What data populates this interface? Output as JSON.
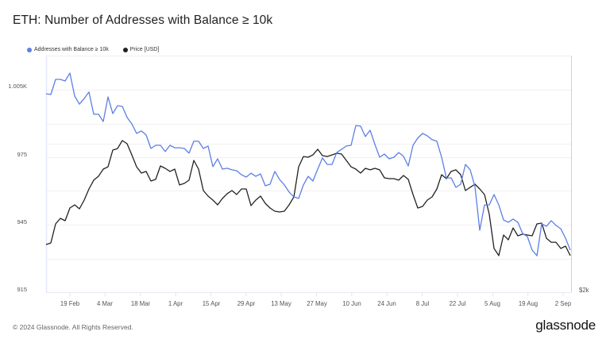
{
  "header": {
    "title": "ETH: Number of Addresses with Balance ≥ 10k"
  },
  "legend": {
    "items": [
      {
        "label": "Addresses with Balance ≥ 10k",
        "color": "#5b7fe6"
      },
      {
        "label": "Price [USD]",
        "color": "#222222"
      }
    ]
  },
  "axes": {
    "left_ticks": [
      "1.005K",
      "975",
      "945",
      "915"
    ],
    "right_ticks": [
      "$2k"
    ],
    "x_ticks": [
      "19 Feb",
      "4 Mar",
      "18 Mar",
      "1 Apr",
      "15 Apr",
      "29 Apr",
      "13 May",
      "27 May",
      "10 Jun",
      "24 Jun",
      "8 Jul",
      "22 Jul",
      "5 Aug",
      "19 Aug",
      "2 Sep"
    ]
  },
  "footer": {
    "copyright": "© 2024 Glassnode. All Rights Reserved.",
    "brand": "glassnode"
  },
  "chart_data": {
    "type": "line",
    "title": "ETH: Number of Addresses with Balance ≥ 10k",
    "xlabel": "",
    "ylabel": "",
    "x_start_date": "2024-02-10",
    "x_end_date": "2024-09-05",
    "x_step_days": 1.9,
    "x_ticks": [
      "19 Feb",
      "4 Mar",
      "18 Mar",
      "1 Apr",
      "15 Apr",
      "29 Apr",
      "13 May",
      "27 May",
      "10 Jun",
      "24 Jun",
      "8 Jul",
      "22 Jul",
      "5 Aug",
      "19 Aug",
      "2 Sep"
    ],
    "ylim_left": [
      915,
      1020
    ],
    "yticks_left": [
      915,
      945,
      975,
      1005
    ],
    "right_axis": {
      "scale": "log",
      "bottom_label": "$2k",
      "bottom_value": 2000
    },
    "grid": true,
    "legend_position": "top-left",
    "series": [
      {
        "name": "Addresses with Balance ≥ 10k",
        "axis": "left",
        "color": "#5b7fe6",
        "values": [
          1003.2,
          1002.9,
          1009.6,
          1009.6,
          1008.9,
          1012.4,
          1002.2,
          998.6,
          1001.1,
          1004.0,
          994.1,
          994.1,
          990.9,
          1001.8,
          994.4,
          997.9,
          997.6,
          992.7,
          989.8,
          985.6,
          986.7,
          984.9,
          978.9,
          980.3,
          980.3,
          977.5,
          980.3,
          979.2,
          979.2,
          978.9,
          976.8,
          982.1,
          982.1,
          978.9,
          980.0,
          970.8,
          974.3,
          969.7,
          970.1,
          969.4,
          969.0,
          967.2,
          966.2,
          967.9,
          966.5,
          967.6,
          962.3,
          963.0,
          968.7,
          965.1,
          962.7,
          959.5,
          957.4,
          956.7,
          962.7,
          966.5,
          964.4,
          969.7,
          974.7,
          971.8,
          971.8,
          977.1,
          978.5,
          980.0,
          980.3,
          989.1,
          988.8,
          984.2,
          987.0,
          980.7,
          975.0,
          976.4,
          974.3,
          975.0,
          977.1,
          975.4,
          971.1,
          980.3,
          983.5,
          985.6,
          984.5,
          982.8,
          982.1,
          975.0,
          965.8,
          965.8,
          961.6,
          963.0,
          971.8,
          969.4,
          961.9,
          942.5,
          953.8,
          953.8,
          958.4,
          953.8,
          947.1,
          946.1,
          947.5,
          946.1,
          941.1,
          939.7,
          933.7,
          931.2,
          945.4,
          944.3,
          946.8,
          944.7,
          943.2,
          939.0,
          933.7
        ]
      },
      {
        "name": "Price [USD]",
        "axis": "right",
        "color": "#222222",
        "values": [
          2484,
          2502,
          2728,
          2798,
          2768,
          2932,
          2975,
          2922,
          3040,
          3198,
          3328,
          3388,
          3500,
          3537,
          3817,
          3843,
          3986,
          3928,
          3734,
          3537,
          3437,
          3463,
          3315,
          3340,
          3551,
          3512,
          3463,
          3500,
          3257,
          3280,
          3328,
          3642,
          3500,
          3175,
          3096,
          3040,
          2975,
          3062,
          3130,
          3175,
          3118,
          3198,
          3198,
          2964,
          3040,
          3096,
          2996,
          2932,
          2890,
          2880,
          2890,
          2975,
          3084,
          3537,
          3707,
          3694,
          3734,
          3830,
          3722,
          3707,
          3734,
          3762,
          3748,
          3642,
          3537,
          3500,
          3437,
          3512,
          3488,
          3512,
          3488,
          3364,
          3352,
          3352,
          3328,
          3400,
          3340,
          3118,
          2932,
          2954,
          3040,
          3084,
          3198,
          3412,
          3352,
          3463,
          3488,
          3412,
          3175,
          3222,
          3268,
          3198,
          3118,
          2850,
          2440,
          2362,
          2594,
          2538,
          2678,
          2584,
          2604,
          2594,
          2584,
          2728,
          2738,
          2556,
          2510,
          2510,
          2440,
          2466,
          2362
        ]
      }
    ]
  }
}
